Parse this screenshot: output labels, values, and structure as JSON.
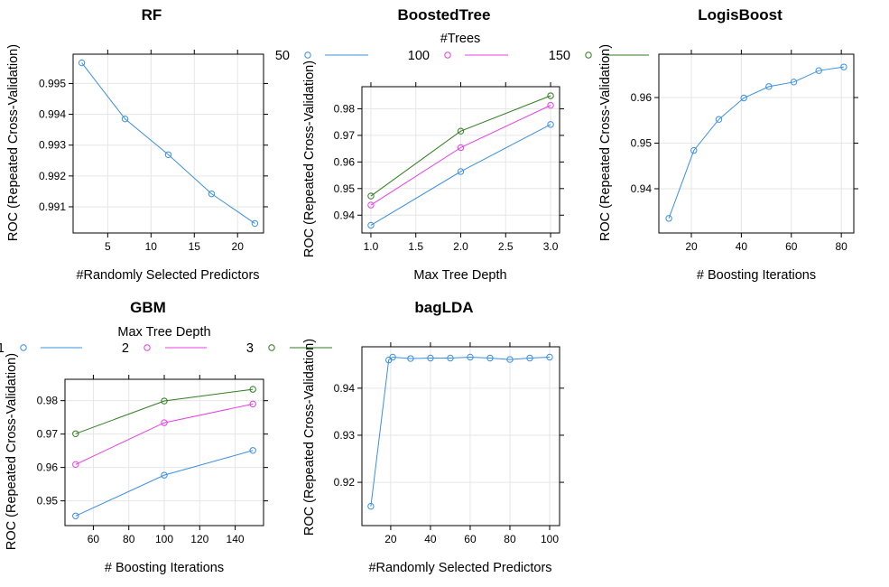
{
  "chart_data": [
    {
      "type": "line",
      "title": "RF",
      "xlabel": "#Randomly Selected Predictors",
      "ylabel": "ROC (Repeated Cross-Validation)",
      "xlim": [
        1,
        23
      ],
      "ylim": [
        0.99015,
        0.99595
      ],
      "xticks": [
        5,
        10,
        15,
        20
      ],
      "yticks": [
        0.991,
        0.992,
        0.993,
        0.994,
        0.995
      ],
      "ytick_labels": [
        "0.991",
        "0.992",
        "0.993",
        "0.994",
        "0.995"
      ],
      "grid": true,
      "series": [
        {
          "color": "#3a8fe3",
          "x": [
            2,
            7,
            12,
            17,
            22
          ],
          "y": [
            0.99567,
            0.99385,
            0.99269,
            0.99142,
            0.99046
          ]
        }
      ]
    },
    {
      "type": "line",
      "title": "BoostedTree",
      "xlabel": "Max Tree Depth",
      "ylabel": "ROC (Repeated Cross-Validation)",
      "xlim": [
        0.9,
        3.1
      ],
      "ylim": [
        0.9333,
        0.9883
      ],
      "xticks": [
        1.0,
        1.5,
        2.0,
        2.5,
        3.0
      ],
      "xtick_labels": [
        "1.0",
        "1.5",
        "2.0",
        "2.5",
        "3.0"
      ],
      "yticks": [
        0.94,
        0.95,
        0.96,
        0.97,
        0.98
      ],
      "ytick_labels": [
        "0.94",
        "0.95",
        "0.96",
        "0.97",
        "0.98"
      ],
      "grid": true,
      "legend": {
        "title": "#Trees",
        "placement": "top"
      },
      "series": [
        {
          "name": "50",
          "color": "#3a8fe3",
          "x": [
            1,
            2,
            3
          ],
          "y": [
            0.9362,
            0.9564,
            0.9741
          ]
        },
        {
          "name": "100",
          "color": "#e83ee8",
          "x": [
            1,
            2,
            3
          ],
          "y": [
            0.9438,
            0.9654,
            0.9813
          ]
        },
        {
          "name": "150",
          "color": "#2f7d1f",
          "x": [
            1,
            2,
            3
          ],
          "y": [
            0.9472,
            0.9716,
            0.9849
          ]
        }
      ]
    },
    {
      "type": "line",
      "title": "LogisBoost",
      "xlabel": "# Boosting Iterations",
      "ylabel": "ROC (Repeated Cross-Validation)",
      "xlim": [
        7,
        85
      ],
      "ylim": [
        0.9303,
        0.9695
      ],
      "xticks": [
        20,
        40,
        60,
        80
      ],
      "yticks": [
        0.94,
        0.95,
        0.96
      ],
      "ytick_labels": [
        "0.94",
        "0.95",
        "0.96"
      ],
      "grid": true,
      "series": [
        {
          "color": "#3a8fe3",
          "x": [
            11,
            21,
            31,
            41,
            51,
            61,
            71,
            81
          ],
          "y": [
            0.9335,
            0.9484,
            0.9552,
            0.9599,
            0.9624,
            0.9634,
            0.9659,
            0.9667
          ]
        }
      ]
    },
    {
      "type": "line",
      "title": "GBM",
      "xlabel": "# Boosting Iterations",
      "ylabel": "ROC (Repeated Cross-Validation)",
      "xlim": [
        44,
        156
      ],
      "ylim": [
        0.9426,
        0.9864
      ],
      "xticks": [
        60,
        80,
        100,
        120,
        140
      ],
      "yticks": [
        0.95,
        0.96,
        0.97,
        0.98
      ],
      "ytick_labels": [
        "0.95",
        "0.96",
        "0.97",
        "0.98"
      ],
      "grid": true,
      "legend": {
        "title": "Max Tree Depth",
        "placement": "top"
      },
      "series": [
        {
          "name": "1",
          "color": "#3a8fe3",
          "x": [
            50,
            100,
            150
          ],
          "y": [
            0.9455,
            0.9577,
            0.9651
          ]
        },
        {
          "name": "2",
          "color": "#e83ee8",
          "x": [
            50,
            100,
            150
          ],
          "y": [
            0.9609,
            0.9734,
            0.979
          ]
        },
        {
          "name": "3",
          "color": "#2f7d1f",
          "x": [
            50,
            100,
            150
          ],
          "y": [
            0.9701,
            0.9799,
            0.9834
          ]
        }
      ]
    },
    {
      "type": "line",
      "title": "bagLDA",
      "xlabel": "#Randomly Selected Predictors",
      "ylabel": "ROC (Repeated Cross-Validation)",
      "xlim": [
        5.5,
        105
      ],
      "ylim": [
        0.9108,
        0.9488
      ],
      "xticks": [
        20,
        40,
        60,
        80,
        100
      ],
      "yticks": [
        0.92,
        0.93,
        0.94
      ],
      "ytick_labels": [
        "0.92",
        "0.93",
        "0.94"
      ],
      "grid": true,
      "series": [
        {
          "color": "#3a8fe3",
          "x": [
            10,
            19,
            21,
            30,
            40,
            50,
            60,
            70,
            80,
            90,
            100
          ],
          "y": [
            0.9149,
            0.946,
            0.9466,
            0.9463,
            0.9464,
            0.9464,
            0.9466,
            0.9464,
            0.9461,
            0.9464,
            0.9466
          ]
        }
      ]
    }
  ]
}
